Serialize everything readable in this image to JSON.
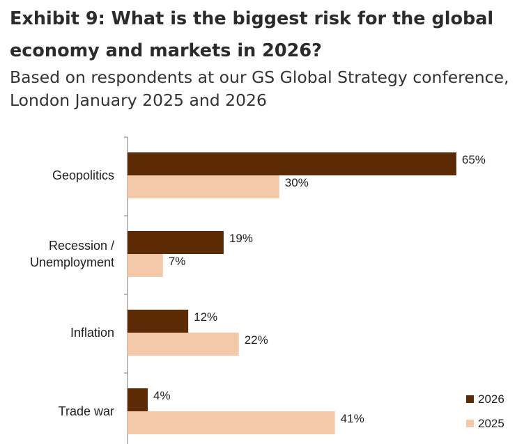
{
  "title": "Exhibit 9: What is the biggest risk for the global economy and markets in 2026?",
  "subtitle": "Based on respondents at our GS Global Strategy conference, London January 2025 and 2026",
  "colors": {
    "series_2026": "#5c2a05",
    "series_2025": "#f4c9a9",
    "axis": "#8c8c8c"
  },
  "chart_data": {
    "type": "bar",
    "orientation": "horizontal",
    "categories": [
      [
        "Geopolitics"
      ],
      [
        "Recession /",
        "Unemployment"
      ],
      [
        "Inflation"
      ],
      [
        "Trade war"
      ]
    ],
    "series": [
      {
        "name": "2026",
        "values": [
          65,
          19,
          12,
          4
        ],
        "labels": [
          "65%",
          "19%",
          "12%",
          "4%"
        ]
      },
      {
        "name": "2025",
        "values": [
          30,
          7,
          22,
          41
        ],
        "labels": [
          "30%",
          "7%",
          "22%",
          "41%"
        ]
      }
    ],
    "xlim": [
      0,
      70
    ],
    "unit": "%",
    "legend": "bottom-right",
    "grid": false
  }
}
